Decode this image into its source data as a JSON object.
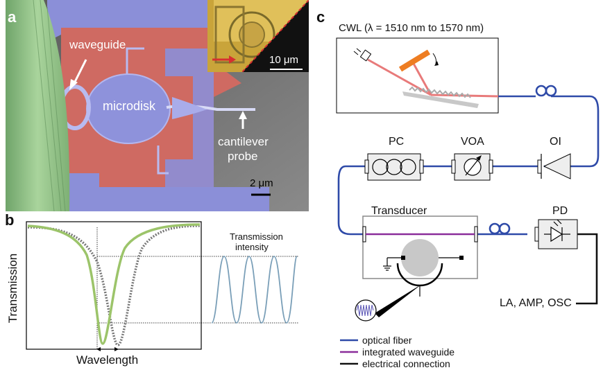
{
  "panel_a": {
    "letter": "a",
    "label_waveguide": "waveguide",
    "label_microdisk": "microdisk",
    "label_cantilever_line1": "cantilever",
    "label_cantilever_line2": "probe",
    "scale_bar": "2 μm",
    "inset_scale_bar": "10 μm"
  },
  "panel_b": {
    "letter": "b",
    "ylabel": "Transmission",
    "xlabel": "Wavelength",
    "right_label_line1": "Transmission",
    "right_label_line2": "intensity"
  },
  "panel_c": {
    "letter": "c",
    "cwl_label": "CWL (λ = 1510 nm to 1570 nm)",
    "pc_label": "PC",
    "voa_label": "VOA",
    "oi_label": "OI",
    "pd_label": "PD",
    "transducer_label": "Transducer",
    "output_label": "LA, AMP, OSC",
    "legend": [
      {
        "label": "optical fiber",
        "color": "#2e4aa8"
      },
      {
        "label": "integrated waveguide",
        "color": "#8a2c9a"
      },
      {
        "label": "electrical connection",
        "color": "#111111"
      }
    ]
  },
  "colors": {
    "fiber": "#2e4aa8",
    "waveguide": "#8a2c9a",
    "electrical": "#111111",
    "laser": "#e87a7a",
    "resonance_shifted": "#9cc46a",
    "resonance_reference": "#777777",
    "intensity_wave": "#7a9fb8",
    "sem_substrate": "#d06d66",
    "sem_device": "#8b8fd8",
    "sem_fiber": "#8fbf86"
  }
}
